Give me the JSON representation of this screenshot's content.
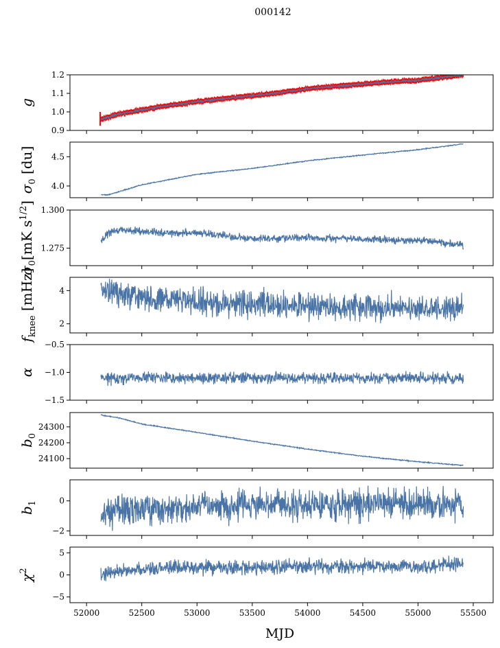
{
  "figure": {
    "suptitle": "000142",
    "xlabel": "MJD"
  },
  "chart_data": {
    "type": "line",
    "shared_x": {
      "label": "MJD",
      "xlim": [
        51850,
        55680
      ],
      "ticks": [
        52000,
        52500,
        53000,
        53500,
        54000,
        54500,
        55000,
        55500
      ],
      "tick_labels": [
        "52000",
        "52500",
        "53000",
        "53500",
        "54000",
        "54500",
        "55000",
        "55500"
      ],
      "series_x_range": [
        52130,
        55410
      ]
    },
    "colors": {
      "line": "#4a74a6",
      "error": "#ff0000"
    },
    "panels": [
      {
        "id": "g",
        "ylabel_main": "g",
        "ylabel_sub": "",
        "ylabel_suffix": "",
        "ylim": [
          0.9,
          1.2
        ],
        "yticks": [
          0.9,
          1.0,
          1.1,
          1.2
        ],
        "ytick_labels": [
          "0.9",
          "1.0",
          "1.1",
          "1.2"
        ],
        "anchors": [
          [
            52130,
            0.96
          ],
          [
            52300,
            0.99
          ],
          [
            52700,
            1.03
          ],
          [
            53000,
            1.055
          ],
          [
            53300,
            1.075
          ],
          [
            53700,
            1.1
          ],
          [
            54000,
            1.125
          ],
          [
            54400,
            1.145
          ],
          [
            54700,
            1.16
          ],
          [
            55000,
            1.17
          ],
          [
            55410,
            1.2
          ]
        ],
        "noise": 0.003,
        "has_error_band": true,
        "error_band": 0.01
      },
      {
        "id": "sigma0_du",
        "ylabel_main": "σ",
        "ylabel_sub": "0",
        "ylabel_suffix": " [du]",
        "ylim": [
          3.8,
          4.75
        ],
        "yticks": [
          4.0,
          4.5
        ],
        "ytick_labels": [
          "4.0",
          "4.5"
        ],
        "anchors": [
          [
            52200,
            3.85
          ],
          [
            52500,
            4.02
          ],
          [
            53000,
            4.2
          ],
          [
            53500,
            4.3
          ],
          [
            54000,
            4.43
          ],
          [
            54500,
            4.53
          ],
          [
            55000,
            4.62
          ],
          [
            55410,
            4.72
          ]
        ],
        "noise": 0.004
      },
      {
        "id": "sigma0_mK",
        "ylabel_main": "σ",
        "ylabel_sub": "0",
        "ylabel_suffix": "[mK s",
        "ylabel_sup": "1/2",
        "ylabel_end": "]",
        "ylim": [
          1.2635,
          1.3
        ],
        "yticks": [
          1.275,
          1.3
        ],
        "ytick_labels": [
          "1.275",
          "1.300"
        ],
        "anchors": [
          [
            52130,
            1.28
          ],
          [
            52200,
            1.285
          ],
          [
            52300,
            1.287
          ],
          [
            52700,
            1.285
          ],
          [
            53000,
            1.285
          ],
          [
            53500,
            1.281
          ],
          [
            54000,
            1.282
          ],
          [
            54500,
            1.281
          ],
          [
            55000,
            1.28
          ],
          [
            55410,
            1.277
          ]
        ],
        "noise": 0.0012
      },
      {
        "id": "fknee",
        "ylabel_main": "f",
        "ylabel_sub": "knee",
        "ylabel_suffix": " [mHz]",
        "ylim": [
          1.45,
          4.8
        ],
        "yticks": [
          2,
          4
        ],
        "ytick_labels": [
          "2",
          "4"
        ],
        "anchors": [
          [
            52130,
            4.0
          ],
          [
            52500,
            3.6
          ],
          [
            53000,
            3.3
          ],
          [
            53500,
            3.2
          ],
          [
            54000,
            3.1
          ],
          [
            54500,
            3.0
          ],
          [
            55000,
            2.95
          ],
          [
            55410,
            2.9
          ]
        ],
        "noise": 0.38
      },
      {
        "id": "alpha",
        "ylabel_main": "α",
        "ylabel_sub": "",
        "ylabel_suffix": "",
        "ylim": [
          -1.5,
          -0.5
        ],
        "yticks": [
          -1.5,
          -1.0,
          -0.5
        ],
        "ytick_labels": [
          "−1.5",
          "−1.0",
          "−0.5"
        ],
        "anchors": [
          [
            52130,
            -1.1
          ],
          [
            55410,
            -1.1
          ]
        ],
        "noise": 0.05
      },
      {
        "id": "b0",
        "ylabel_main": "b",
        "ylabel_sub": "0",
        "ylabel_suffix": "",
        "ylim": [
          24040,
          24390
        ],
        "yticks": [
          24100,
          24200,
          24300
        ],
        "ytick_labels": [
          "24100",
          "24200",
          "24300"
        ],
        "anchors": [
          [
            52130,
            24375
          ],
          [
            52300,
            24355
          ],
          [
            52500,
            24318
          ],
          [
            53000,
            24265
          ],
          [
            53500,
            24210
          ],
          [
            54000,
            24160
          ],
          [
            54500,
            24115
          ],
          [
            55000,
            24080
          ],
          [
            55410,
            24057
          ]
        ],
        "noise": 1.5
      },
      {
        "id": "b1",
        "ylabel_main": "b",
        "ylabel_sub": "1",
        "ylabel_suffix": "",
        "ylim": [
          -2.3,
          1.4
        ],
        "yticks": [
          -2,
          0
        ],
        "ytick_labels": [
          "−2",
          "0"
        ],
        "anchors": [
          [
            52130,
            -0.6
          ],
          [
            53000,
            -0.4
          ],
          [
            54000,
            -0.2
          ],
          [
            55000,
            -0.2
          ],
          [
            55410,
            -0.2
          ]
        ],
        "noise": 0.5
      },
      {
        "id": "chi2",
        "ylabel_main": "χ",
        "ylabel_sub": "",
        "ylabel_sup": "2",
        "ylabel_suffix": "",
        "ylim": [
          -6.3,
          6.3
        ],
        "yticks": [
          -5,
          0,
          5
        ],
        "ytick_labels": [
          "−5",
          "0",
          "5"
        ],
        "anchors": [
          [
            52130,
            0.5
          ],
          [
            52500,
            1.3
          ],
          [
            53000,
            1.6
          ],
          [
            54000,
            1.9
          ],
          [
            54500,
            2.0
          ],
          [
            55000,
            1.8
          ],
          [
            55410,
            2.6
          ]
        ],
        "noise": 0.8
      }
    ]
  }
}
